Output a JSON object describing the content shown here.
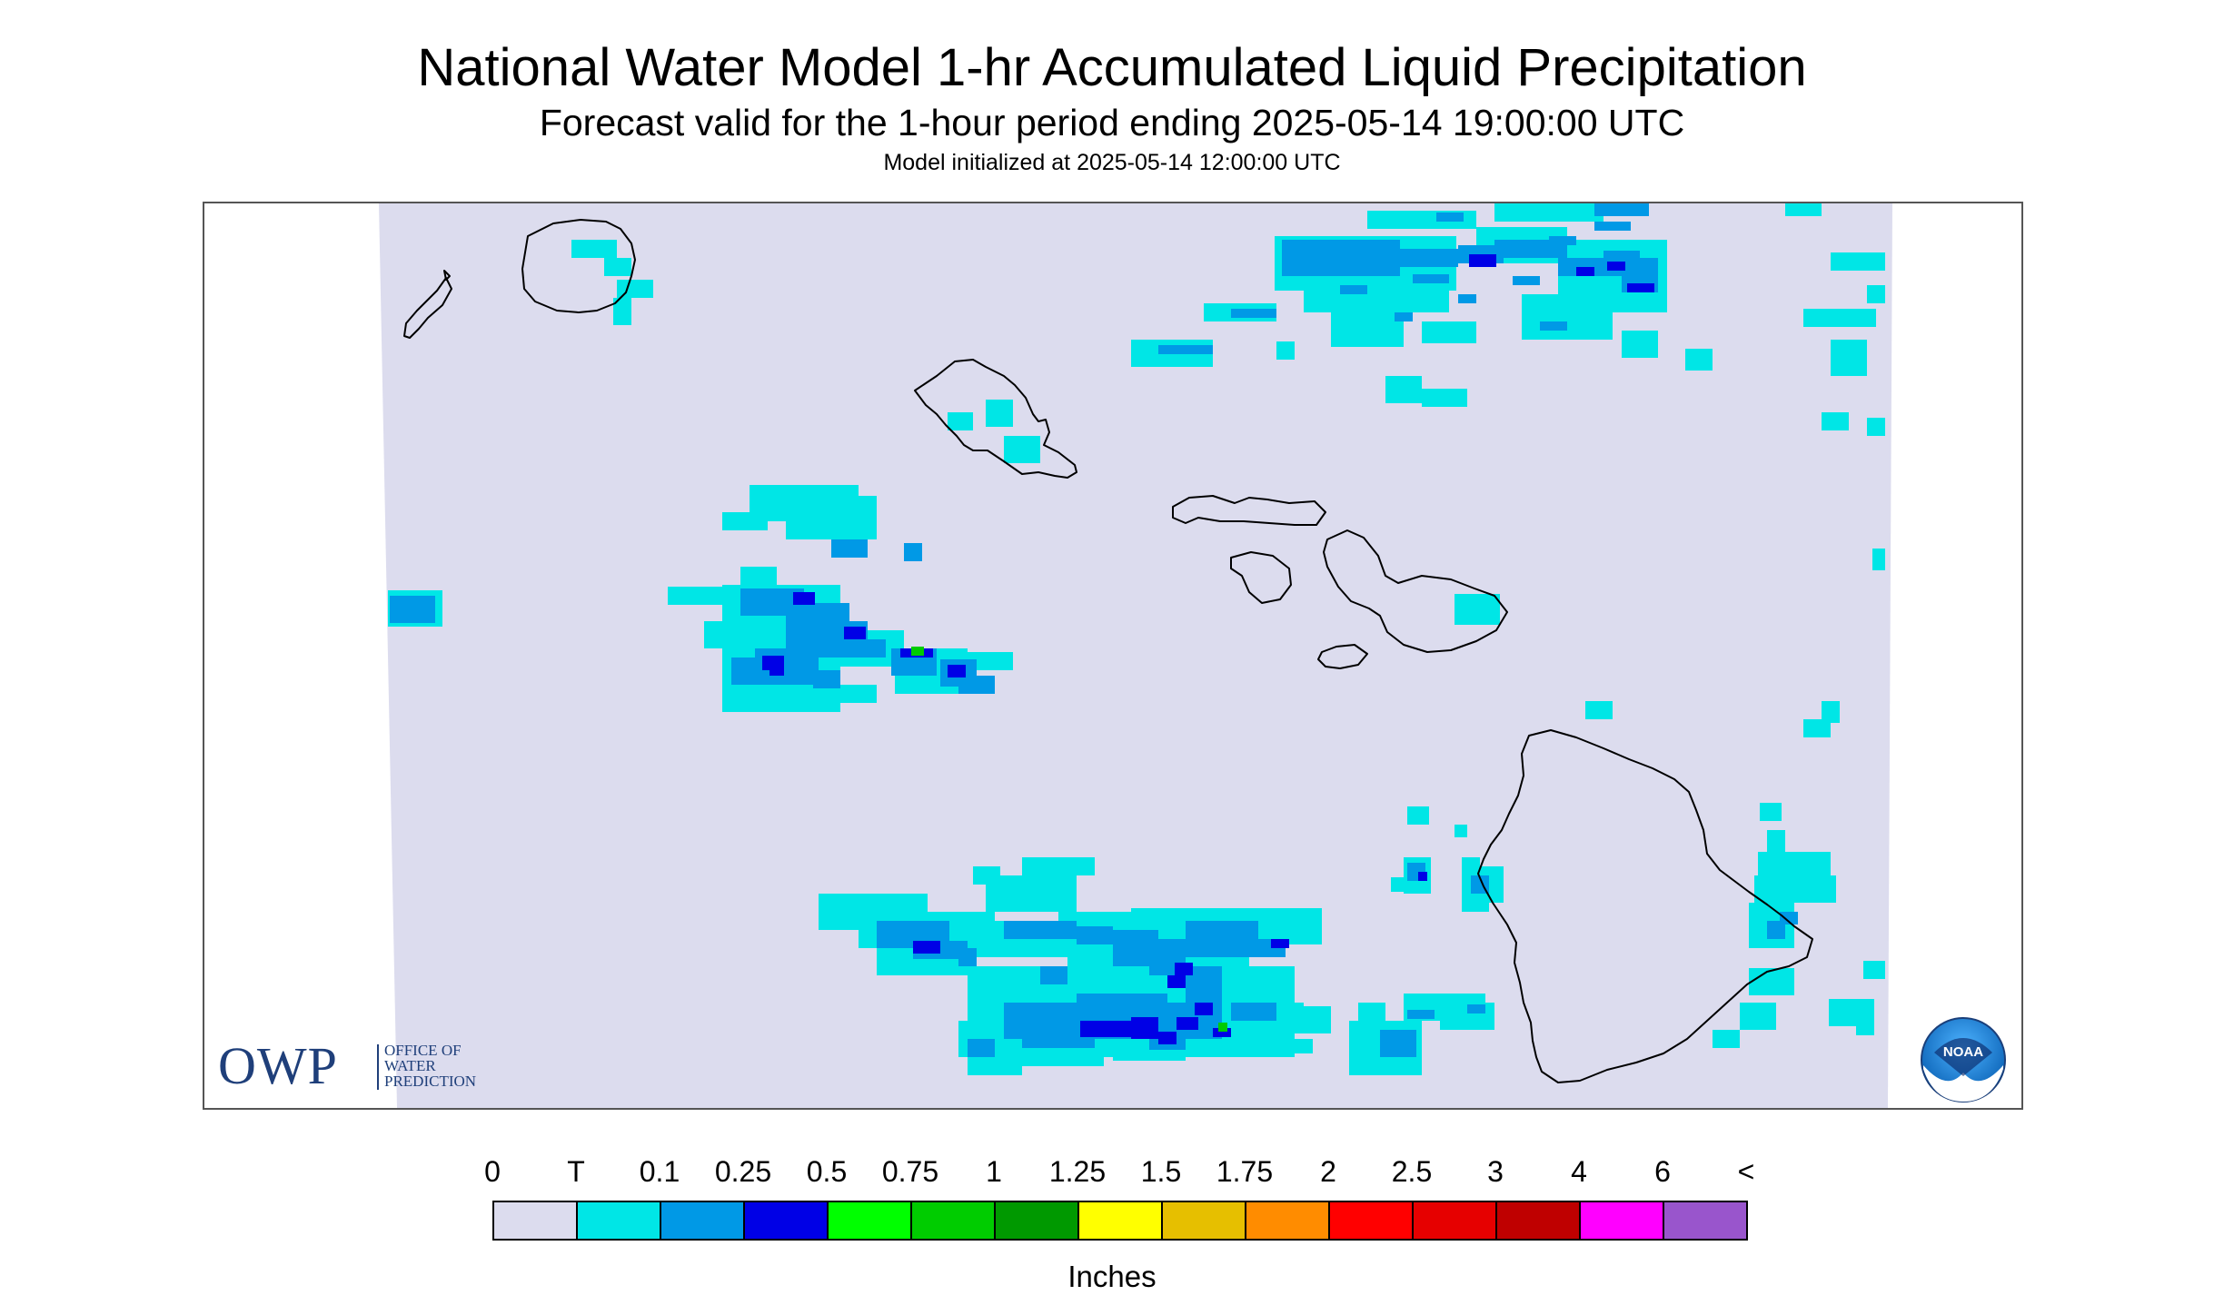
{
  "header": {
    "title": "National Water Model 1-hr Accumulated Liquid Precipitation",
    "subtitle": "Forecast valid for the 1-hour period ending 2025-05-14 19:00:00 UTC",
    "init": "Model initialized at 2025-05-14 12:00:00 UTC"
  },
  "map": {
    "region": "Hawaii",
    "background_color": "#dcdcee",
    "coastline_color": "#000000"
  },
  "logos": {
    "owp": {
      "letters": "OWP",
      "line1": "OFFICE OF",
      "line2": "WATER",
      "line3": "PREDICTION",
      "color": "#1f3f7a"
    },
    "noaa": {
      "text": "NOAA",
      "icon": "noaa-logo-icon"
    }
  },
  "legend": {
    "labels": [
      "0",
      "T",
      "0.1",
      "0.25",
      "0.5",
      "0.75",
      "1",
      "1.25",
      "1.5",
      "1.75",
      "2",
      "2.5",
      "3",
      "4",
      "6",
      "<"
    ],
    "colors": [
      "#dcdcee",
      "#00e6e6",
      "#0099e6",
      "#0000e6",
      "#00ff00",
      "#00cc00",
      "#009900",
      "#ffff00",
      "#e6bf00",
      "#ff8c00",
      "#ff0000",
      "#e60000",
      "#bf0000",
      "#ff00ff",
      "#9955cc"
    ],
    "units": "Inches"
  }
}
